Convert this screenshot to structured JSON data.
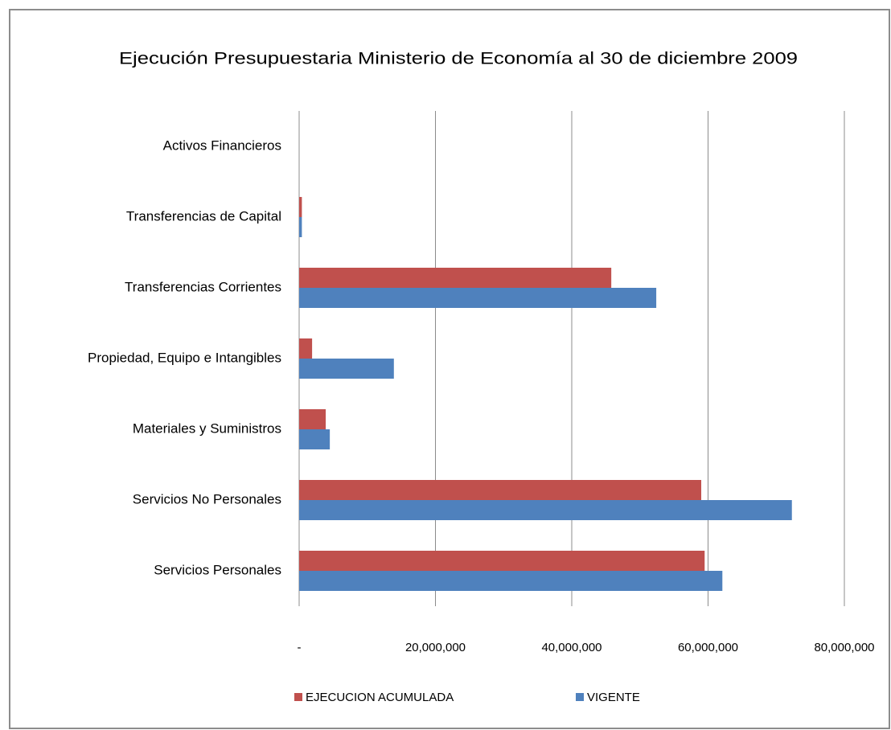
{
  "chart_data": {
    "type": "hbar",
    "title": "Ejecución Presupuestaria Ministerio de Economía al  30 de diciembre  2009",
    "categories": [
      "Activos Financieros",
      "Transferencias de Capital",
      "Transferencias Corrientes",
      "Propiedad, Equipo e Intangibles",
      "Materiales y Suministros",
      "Servicios No Personales",
      "Servicios  Personales"
    ],
    "series": [
      {
        "name": "EJECUCION ACUMULADA",
        "color": "#c0504d",
        "values": [
          0,
          400000,
          45800000,
          1900000,
          3900000,
          59000000,
          59500000
        ]
      },
      {
        "name": "VIGENTE",
        "color": "#4f81bd",
        "values": [
          0,
          400000,
          52400000,
          13900000,
          4500000,
          72300000,
          62100000
        ]
      }
    ],
    "xlim": [
      0,
      80000000
    ],
    "xticks": [
      {
        "value": 0,
        "label": "-"
      },
      {
        "value": 20000000,
        "label": "20,000,000"
      },
      {
        "value": 40000000,
        "label": "40,000,000"
      },
      {
        "value": 60000000,
        "label": "60,000,000"
      },
      {
        "value": 80000000,
        "label": "80,000,000"
      }
    ],
    "grid": true,
    "legend": "bottom"
  }
}
